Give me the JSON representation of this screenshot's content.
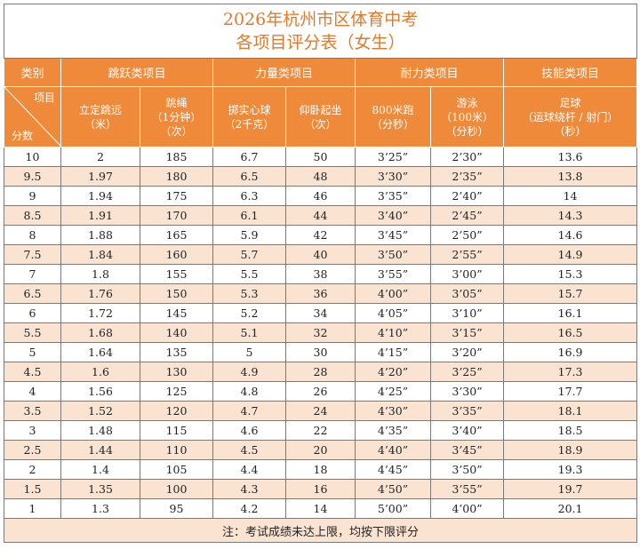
{
  "title": {
    "line1": "2026年杭州市区体育中考",
    "line2": "各项目评分表（女生）"
  },
  "categories": {
    "type": "类别",
    "jump": "跳跃类项目",
    "strength": "力量类项目",
    "endurance": "耐力类项目",
    "skill": "技能类项目"
  },
  "corner": {
    "item": "项目",
    "score": "分数"
  },
  "columns": {
    "long_jump": {
      "name": "立定跳远",
      "unit": "（米）"
    },
    "rope": {
      "name": "跳绳",
      "unit1": "（1分钟）",
      "unit2": "（次）"
    },
    "ball": {
      "name": "掷实心球",
      "unit": "（2千克）"
    },
    "situp": {
      "name": "仰卧起坐",
      "unit": "（次）"
    },
    "run": {
      "name": "800米跑",
      "unit": "（分秒）"
    },
    "swim": {
      "name": "游泳",
      "unit1": "（100米）",
      "unit2": "（分秒）"
    },
    "football": {
      "name": "足球",
      "unit1": "（运球绕杆 / 射门）",
      "unit2": "（秒）"
    }
  },
  "rows": [
    [
      "10",
      "2",
      "185",
      "6.7",
      "50",
      "3’25”",
      "2’30”",
      "13.6"
    ],
    [
      "9.5",
      "1.97",
      "180",
      "6.5",
      "48",
      "3’30”",
      "2’35”",
      "13.8"
    ],
    [
      "9",
      "1.94",
      "175",
      "6.3",
      "46",
      "3’35”",
      "2’40”",
      "14"
    ],
    [
      "8.5",
      "1.91",
      "170",
      "6.1",
      "44",
      "3’40”",
      "2’45”",
      "14.3"
    ],
    [
      "8",
      "1.88",
      "165",
      "5.9",
      "42",
      "3’45”",
      "2’50”",
      "14.6"
    ],
    [
      "7.5",
      "1.84",
      "160",
      "5.7",
      "40",
      "3’50”",
      "2’55”",
      "14.9"
    ],
    [
      "7",
      "1.8",
      "155",
      "5.5",
      "38",
      "3’55”",
      "3’00”",
      "15.3"
    ],
    [
      "6.5",
      "1.76",
      "150",
      "5.3",
      "36",
      "4’00”",
      "3’05”",
      "15.7"
    ],
    [
      "6",
      "1.72",
      "145",
      "5.2",
      "34",
      "4’05”",
      "3’10”",
      "16.1"
    ],
    [
      "5.5",
      "1.68",
      "140",
      "5.1",
      "32",
      "4’10”",
      "3’15”",
      "16.5"
    ],
    [
      "5",
      "1.64",
      "135",
      "5",
      "30",
      "4’15”",
      "3’20”",
      "16.9"
    ],
    [
      "4.5",
      "1.6",
      "130",
      "4.9",
      "28",
      "4’20”",
      "3’25”",
      "17.3"
    ],
    [
      "4",
      "1.56",
      "125",
      "4.8",
      "26",
      "4’25”",
      "3’30”",
      "17.7"
    ],
    [
      "3.5",
      "1.52",
      "120",
      "4.7",
      "24",
      "4’30”",
      "3’35”",
      "18.1"
    ],
    [
      "3",
      "1.48",
      "115",
      "4.6",
      "22",
      "4’35”",
      "3’40”",
      "18.5"
    ],
    [
      "2.5",
      "1.44",
      "110",
      "4.5",
      "20",
      "4’40”",
      "3’45”",
      "18.9"
    ],
    [
      "2",
      "1.4",
      "105",
      "4.4",
      "18",
      "4’45”",
      "3’50”",
      "19.3"
    ],
    [
      "1.5",
      "1.35",
      "100",
      "4.3",
      "16",
      "4’50”",
      "3’55”",
      "19.7"
    ],
    [
      "1",
      "1.3",
      "95",
      "4.2",
      "14",
      "5’00”",
      "4’00”",
      "20.1"
    ]
  ],
  "note": "注：考试成绩未达上限，均按下限评分",
  "colors": {
    "header_bg": "#ef8a3a",
    "title_text": "#e07a2a",
    "stripe": "#fbe3d2"
  }
}
